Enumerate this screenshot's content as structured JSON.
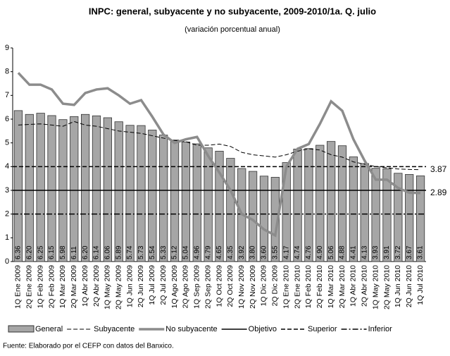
{
  "chart_data": {
    "type": "bar_line",
    "title": "INPC: general, subyacente y no subyacente, 2009-2010/1a. Q. julio",
    "subtitle": "(variación porcentual anual)",
    "source": "Fuente: Elaborado por el CEFP con  datos del Banxico.",
    "categories": [
      "1Q Ene 2009",
      "2Q Ene 2009",
      "1Q Feb 2009",
      "2Q Feb 2009",
      "1Q Mar 2009",
      "2Q Mar 2009",
      "1Q Abr 2009",
      "2Q Abr 2009",
      "1Q May 2009",
      "2Q May 2009",
      "1Q Jun 2009",
      "2Q Jun 2009",
      "1Q Jul 2009",
      "2Q Jul 2009",
      "1Q Ago 2009",
      "2Q Ago 2009",
      "1Q Sep 2009",
      "2Q Sep 2009",
      "1Q Oct 2009",
      "2Q Oct 2009",
      "1Q Nov 2009",
      "2Q Nov 2009",
      "1Q Dic 2009",
      "2Q Dic 2009",
      "1Q Ene 2010",
      "2Q Ene 2010",
      "1Q Feb 2010",
      "2Q Feb 2010",
      "1Q Mar 2010",
      "2Q Mar 2010",
      "1Q Abr 2010",
      "2Q Abr 2010",
      "1Q May 2010",
      "2Q May 2010",
      "1Q Jun 2010",
      "2Q Jun 2010",
      "1Q Jul 2010"
    ],
    "series": [
      {
        "name": "General",
        "kind": "bar",
        "color": "#a6a6a6",
        "values": [
          6.36,
          6.2,
          6.25,
          6.15,
          5.98,
          6.11,
          6.2,
          6.14,
          6.06,
          5.89,
          5.74,
          5.73,
          5.54,
          5.33,
          5.12,
          5.04,
          4.96,
          4.79,
          4.65,
          4.35,
          3.92,
          3.8,
          3.6,
          3.55,
          4.17,
          4.74,
          4.76,
          4.9,
          5.06,
          4.88,
          4.41,
          4.13,
          3.93,
          3.91,
          3.72,
          3.67,
          3.61
        ],
        "value_labels": [
          "6.36",
          "6.20",
          "6.25",
          "6.15",
          "5.98",
          "6.11",
          "6.20",
          "6.14",
          "6.06",
          "5.89",
          "5.74",
          "5.73",
          "5.54",
          "5.33",
          "5.12",
          "5.04",
          "4.96",
          "4.79",
          "4.65",
          "4.35",
          "3.92",
          "3.80",
          "3.60",
          "3.55",
          "4.17",
          "4.74",
          "4.76",
          "4.90",
          "5.06",
          "4.88",
          "4.41",
          "4.13",
          "3.93",
          "3.91",
          "3.72",
          "3.67",
          "3.61"
        ]
      },
      {
        "name": "Subyacente",
        "kind": "line",
        "color": "#000000",
        "dash": "6 3",
        "width": 1,
        "values": [
          5.75,
          5.78,
          5.8,
          5.75,
          5.7,
          5.9,
          5.75,
          5.7,
          5.6,
          5.5,
          5.45,
          5.4,
          5.3,
          5.2,
          5.1,
          5.05,
          4.9,
          4.9,
          4.95,
          4.85,
          4.6,
          4.5,
          4.45,
          4.4,
          4.5,
          4.65,
          4.75,
          4.7,
          4.5,
          4.4,
          4.2,
          4.1,
          4.0,
          3.95,
          3.9,
          3.88,
          3.87
        ]
      },
      {
        "name": "No subyacente",
        "kind": "line",
        "color": "#8c8c8c",
        "dash": "none",
        "width": 3.5,
        "values": [
          7.95,
          7.45,
          7.45,
          7.25,
          6.65,
          6.6,
          7.1,
          7.25,
          7.3,
          7.0,
          6.65,
          6.8,
          6.1,
          5.35,
          5.0,
          5.15,
          5.25,
          4.45,
          3.75,
          3.0,
          2.0,
          1.75,
          1.35,
          1.1,
          4.0,
          4.75,
          4.95,
          5.8,
          6.75,
          6.35,
          5.15,
          4.25,
          3.45,
          3.45,
          3.1,
          2.9,
          2.89
        ]
      }
    ],
    "reference_lines": [
      {
        "name": "Objetivo",
        "value": 3,
        "dash": "none"
      },
      {
        "name": "Superior",
        "value": 4,
        "dash": "6 3"
      },
      {
        "name": "Inferior",
        "value": 2,
        "dash": "8 3 2 3"
      }
    ],
    "end_labels": [
      3.87,
      2.89
    ],
    "ylim": [
      0,
      9
    ],
    "yticks": [
      0,
      1,
      2,
      3,
      4,
      5,
      6,
      7,
      8,
      9
    ]
  }
}
